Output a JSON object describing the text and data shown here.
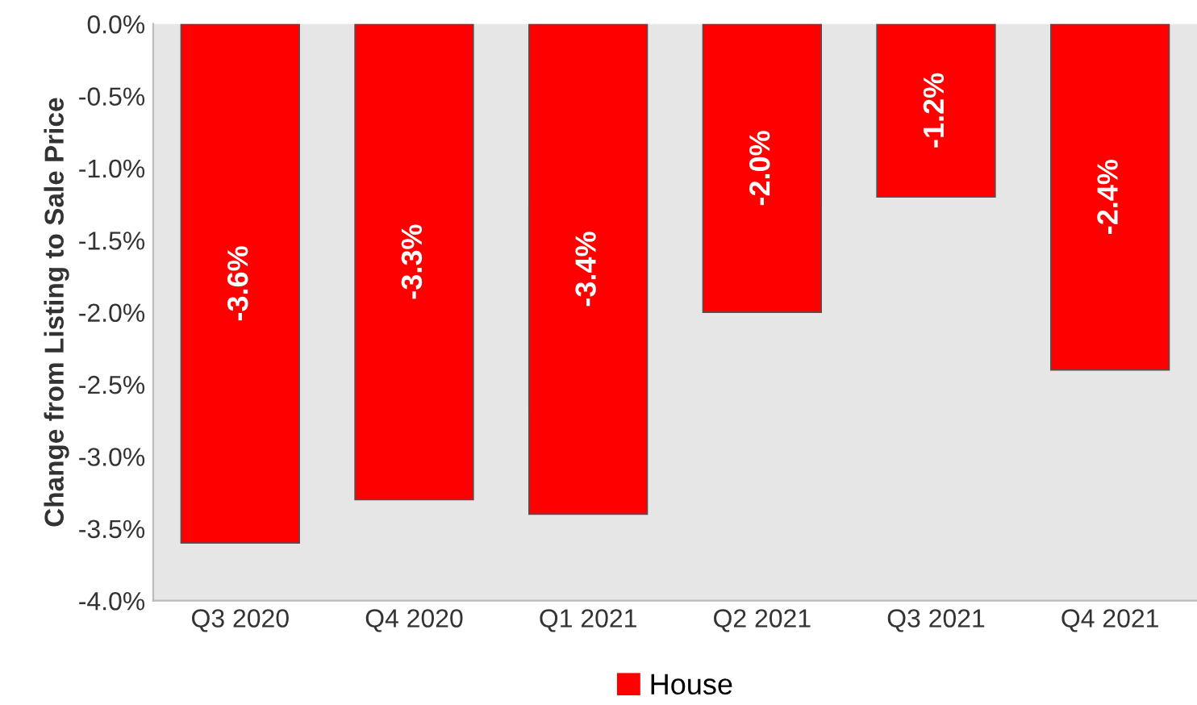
{
  "chart_data": {
    "type": "bar",
    "ylabel": "Change from Listing to Sale Price",
    "categories": [
      "Q3 2020",
      "Q4 2020",
      "Q1 2021",
      "Q2 2021",
      "Q3 2021",
      "Q4 2021"
    ],
    "series": [
      {
        "name": "House",
        "color": "#ff0000",
        "values": [
          -3.6,
          -3.3,
          -3.4,
          -2.0,
          -1.2,
          -2.4
        ],
        "value_labels": [
          "-3.6%",
          "-3.3%",
          "-3.4%",
          "-2.0%",
          "-1.2%",
          "-2.4%"
        ]
      }
    ],
    "ylim": [
      -4.0,
      0.0
    ],
    "yticks": [
      {
        "value": -4.0,
        "label": "-4.0%"
      },
      {
        "value": -3.5,
        "label": "-3.5%"
      },
      {
        "value": -3.0,
        "label": "-3.0%"
      },
      {
        "value": -2.5,
        "label": "-2.5%"
      },
      {
        "value": -2.0,
        "label": "-2.0%"
      },
      {
        "value": -1.5,
        "label": "-1.5%"
      },
      {
        "value": -1.0,
        "label": "-1.0%"
      },
      {
        "value": -0.5,
        "label": "-0.5%"
      },
      {
        "value": 0.0,
        "label": "0.0%"
      }
    ],
    "grid": false,
    "legend": "bottom"
  }
}
